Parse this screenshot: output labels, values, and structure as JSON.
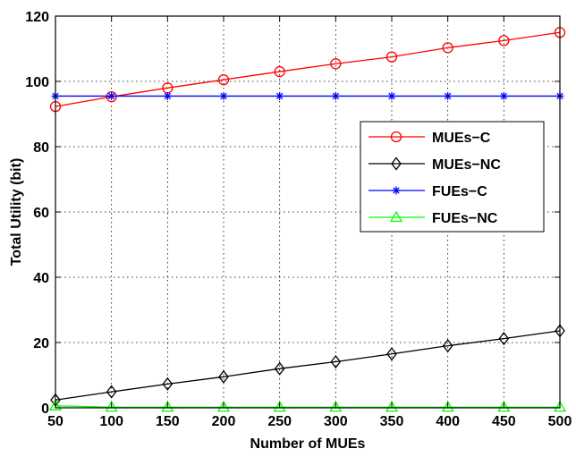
{
  "chart_data": {
    "type": "line",
    "title": "",
    "xlabel": "Number of MUEs",
    "ylabel": "Total Utility (bit)",
    "xlim": [
      50,
      500
    ],
    "ylim": [
      0,
      120
    ],
    "grid": true,
    "legend_position": "right",
    "x": [
      50,
      100,
      150,
      200,
      250,
      300,
      350,
      400,
      450,
      500
    ],
    "x_ticks": [
      50,
      100,
      150,
      200,
      250,
      300,
      350,
      400,
      450,
      500
    ],
    "y_ticks": [
      0,
      20,
      40,
      60,
      80,
      100,
      120
    ],
    "series": [
      {
        "name": "MUEs−C",
        "color": "#ff0000",
        "marker": "circle",
        "values": [
          92.3,
          95.3,
          98.0,
          100.5,
          103.0,
          105.4,
          107.5,
          110.3,
          112.5,
          115.0
        ]
      },
      {
        "name": "MUEs−NC",
        "color": "#000000",
        "marker": "diamond",
        "values": [
          2.4,
          4.9,
          7.3,
          9.5,
          12.0,
          14.1,
          16.5,
          19.0,
          21.2,
          23.6
        ]
      },
      {
        "name": "FUEs−C",
        "color": "#0000ff",
        "marker": "star",
        "values": [
          95.5,
          95.5,
          95.5,
          95.5,
          95.5,
          95.5,
          95.5,
          95.5,
          95.5,
          95.5
        ]
      },
      {
        "name": "FUEs−NC",
        "color": "#00ff00",
        "marker": "triangle",
        "values": [
          0.6,
          0.2,
          0.2,
          0.2,
          0.2,
          0.2,
          0.2,
          0.2,
          0.2,
          0.2
        ]
      }
    ]
  }
}
